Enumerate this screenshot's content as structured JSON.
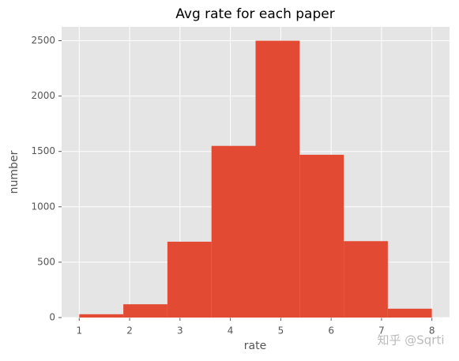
{
  "chart_data": {
    "type": "histogram",
    "title": "Avg rate for each paper",
    "x_label": "rate",
    "y_label": "number",
    "bins": [
      1,
      1.875,
      2.75,
      3.625,
      4.5,
      5.375,
      6.25,
      7.125,
      8
    ],
    "values": [
      30,
      120,
      685,
      1550,
      2500,
      1470,
      690,
      80
    ],
    "color": "#E24A33",
    "xlim": [
      0.65,
      8.35
    ],
    "xticks": [
      1,
      2,
      3,
      4,
      5,
      6,
      7,
      8
    ],
    "ylim": [
      0,
      2625
    ],
    "yticks": [
      0,
      500,
      1000,
      1500,
      2000,
      2500
    ],
    "grid": true
  },
  "watermark": "知乎 @Sqrti"
}
